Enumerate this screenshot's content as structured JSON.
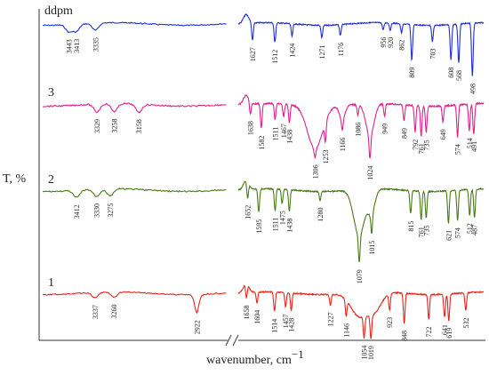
{
  "chart_data": {
    "type": "line",
    "ylabel": "T, %",
    "xlabel": "wavenumber, cm",
    "xlabel_sup": "−1",
    "axis_break": true,
    "y_axis_ticks": false,
    "x_axis_ticks": false,
    "grid": false,
    "legend": "series labels placed on the left above each trace",
    "series": [
      {
        "name": "ddpm",
        "color": "#1f2fd6",
        "left_peaks": [
          "3443",
          "3413",
          "3335"
        ],
        "right_peaks": [
          "1627",
          "1512",
          "1424",
          "1271",
          "1176",
          "956",
          "920",
          "862",
          "809",
          "703",
          "608",
          "568",
          "498"
        ]
      },
      {
        "name": "3",
        "color": "#e0218a",
        "left_peaks": [
          "3329",
          "3258",
          "3158"
        ],
        "right_peaks": [
          "1638",
          "1582",
          "1511",
          "1467",
          "1438",
          "1306",
          "1253",
          "1166",
          "1086",
          "1024",
          "949",
          "849",
          "792",
          "761",
          "735",
          "649",
          "574",
          "514",
          "491"
        ]
      },
      {
        "name": "2",
        "color": "#4a7a18",
        "left_peaks": [
          "3412",
          "3330",
          "3275"
        ],
        "right_peaks": [
          "1652",
          "1595",
          "1511",
          "1475",
          "1438",
          "1280",
          "1079",
          "1015",
          "815",
          "761",
          "735",
          "621",
          "574",
          "512",
          "487"
        ]
      },
      {
        "name": "1",
        "color": "#e8241c",
        "left_peaks": [
          "3337",
          "3260",
          "2922"
        ],
        "right_peaks": [
          "1658",
          "1604",
          "1514",
          "1457",
          "1428",
          "1227",
          "1146",
          "1054",
          "1019",
          "923",
          "848",
          "722",
          "619",
          "641",
          "532"
        ]
      }
    ]
  }
}
